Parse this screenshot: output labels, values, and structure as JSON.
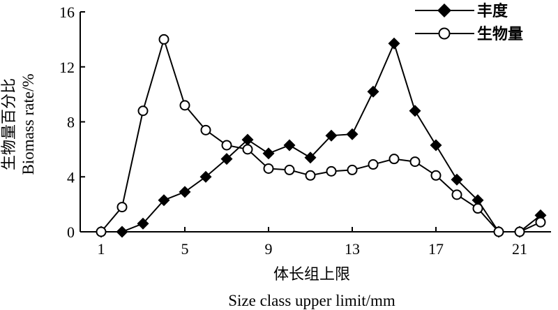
{
  "chart_data": {
    "type": "line",
    "xlabel": "体长组上限",
    "xlabel_en": "Size class upper limit/mm",
    "ylabel": "生物量百分比",
    "ylabel_en": "Biomass rate/%",
    "xlim": [
      0,
      22.5
    ],
    "ylim": [
      0,
      16
    ],
    "xticks": [
      1,
      5,
      9,
      13,
      17,
      21
    ],
    "yticks": [
      0,
      4,
      8,
      12,
      16
    ],
    "grid": false,
    "legend_position": "top-right",
    "x": [
      1,
      2,
      3,
      4,
      5,
      6,
      7,
      8,
      9,
      10,
      11,
      12,
      13,
      14,
      15,
      16,
      17,
      18,
      19,
      20,
      21,
      22
    ],
    "series": [
      {
        "name": "丰度",
        "marker": "diamond",
        "values": [
          0,
          0,
          0.6,
          2.3,
          2.9,
          4.0,
          5.3,
          6.7,
          5.7,
          6.3,
          5.4,
          7.0,
          7.1,
          10.2,
          13.7,
          8.8,
          6.3,
          3.8,
          2.3,
          0,
          0,
          1.2
        ]
      },
      {
        "name": "生物量",
        "marker": "circle",
        "values": [
          0,
          1.8,
          8.8,
          14.0,
          9.2,
          7.4,
          6.3,
          6.0,
          4.6,
          4.5,
          4.1,
          4.4,
          4.5,
          4.9,
          5.3,
          5.1,
          4.1,
          2.7,
          1.7,
          0,
          0,
          0.7
        ]
      }
    ]
  }
}
